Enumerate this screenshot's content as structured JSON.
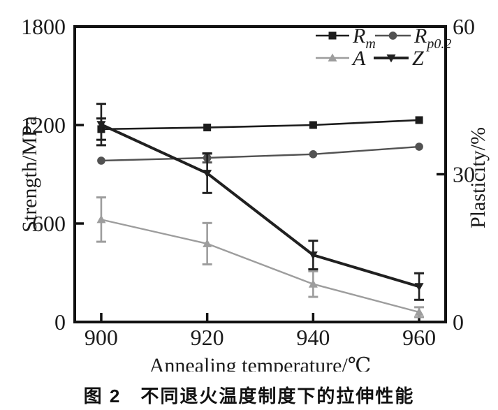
{
  "figure": {
    "caption": "图 2　不同退火温度制度下的拉伸性能"
  },
  "chart_data": {
    "type": "line",
    "title": "",
    "xlabel": "Annealing temperature/℃",
    "ylabel_left": "Strength/MPa",
    "ylabel_right": "Plasticity/%",
    "x": [
      900,
      920,
      940,
      960
    ],
    "xlim": [
      895,
      965
    ],
    "ylim_left": [
      0,
      1800
    ],
    "yticks_left": [
      0,
      600,
      1200,
      1800
    ],
    "ylim_right": [
      0,
      60
    ],
    "yticks_right": [
      0,
      30,
      60
    ],
    "grid": false,
    "legend_position": "top-right",
    "frame_color": "#111111",
    "series": [
      {
        "name": "Rm",
        "label_main": "R",
        "label_sub": "m",
        "axis": "left",
        "unit": "MPa",
        "values": [
          1175,
          1185,
          1200,
          1230
        ],
        "errors": [
          65,
          0,
          0,
          0
        ],
        "color": "#1c1c1c",
        "marker": "square",
        "line_width": 2.6
      },
      {
        "name": "Rp0.2",
        "label_main": "R",
        "label_sub": "p0.2",
        "axis": "left",
        "unit": "MPa",
        "values": [
          983,
          1000,
          1022,
          1068
        ],
        "errors": [
          0,
          28,
          0,
          0
        ],
        "color": "#525252",
        "marker": "circle",
        "line_width": 2.4
      },
      {
        "name": "A",
        "label_main": "A",
        "label_sub": "",
        "axis": "right",
        "unit": "%",
        "values": [
          20.8,
          15.9,
          7.7,
          2.0
        ],
        "errors": [
          4.5,
          4.2,
          2.6,
          1.0
        ],
        "color": "#9d9d9d",
        "marker": "triangle-up",
        "line_width": 2.4
      },
      {
        "name": "Z",
        "label_main": "Z",
        "label_sub": "",
        "axis": "right",
        "unit": "%",
        "values": [
          40.1,
          30.2,
          13.6,
          7.2
        ],
        "errors": [
          4.2,
          4.0,
          2.9,
          2.7
        ],
        "color": "#202020",
        "marker": "triangle-down",
        "line_width": 4
      }
    ]
  }
}
